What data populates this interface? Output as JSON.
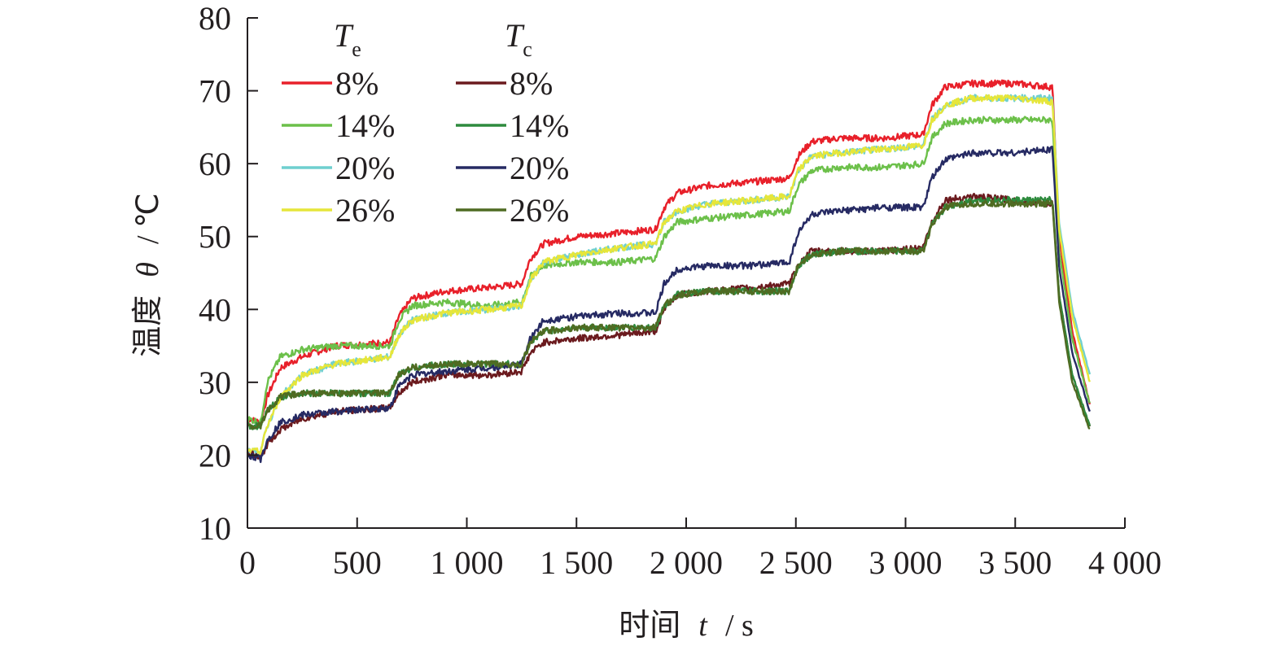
{
  "chart_data": {
    "type": "line",
    "xlabel": {
      "prefix": "时间",
      "var": "t",
      "unit": "/ s"
    },
    "ylabel": {
      "prefix": "温度",
      "var": "θ",
      "unit": "/ ℃"
    },
    "xlim": [
      0,
      4000
    ],
    "ylim": [
      10,
      80
    ],
    "xticks": [
      0,
      500,
      1000,
      1500,
      2000,
      2500,
      3000,
      3500,
      4000
    ],
    "xtick_labels": [
      "0",
      "500",
      "1 000",
      "1 500",
      "2 000",
      "2 500",
      "3 000",
      "3 500",
      "4 000"
    ],
    "yticks": [
      10,
      20,
      30,
      40,
      50,
      60,
      70,
      80
    ],
    "ytick_labels": [
      "10",
      "20",
      "30",
      "40",
      "50",
      "60",
      "70",
      "80"
    ],
    "grid": false,
    "legend_position": "top-left",
    "legend_groups": [
      {
        "symbol": "T",
        "subscript": "e"
      },
      {
        "symbol": "T",
        "subscript": "c"
      }
    ],
    "series": [
      {
        "group": "Te",
        "name": "8%",
        "color": "#e8202a",
        "x": [
          0,
          60,
          90,
          150,
          250,
          400,
          650,
          690,
          750,
          900,
          1100,
          1250,
          1290,
          1350,
          1500,
          1700,
          1860,
          1900,
          1960,
          2100,
          2300,
          2470,
          2510,
          2570,
          2700,
          2900,
          3080,
          3120,
          3180,
          3300,
          3500,
          3670,
          3700,
          3760,
          3840
        ],
        "y": [
          25,
          24.5,
          28,
          32,
          33.5,
          35,
          35.5,
          39,
          41.5,
          42.5,
          43,
          43.5,
          47,
          49,
          50,
          50.5,
          51,
          54,
          56,
          57,
          57.5,
          58,
          61,
          63,
          63.5,
          63.5,
          64,
          68,
          70.5,
          71,
          71,
          70.5,
          50,
          37,
          27
        ]
      },
      {
        "group": "Te",
        "name": "14%",
        "color": "#6cc04a",
        "x": [
          0,
          60,
          90,
          150,
          250,
          400,
          650,
          690,
          750,
          900,
          1100,
          1250,
          1290,
          1350,
          1500,
          1700,
          1860,
          1900,
          1960,
          2100,
          2300,
          2470,
          2510,
          2570,
          2700,
          2900,
          3080,
          3120,
          3180,
          3300,
          3500,
          3670,
          3700,
          3760,
          3840
        ],
        "y": [
          25,
          24.5,
          30,
          33.5,
          34.5,
          35,
          35,
          38.5,
          40.5,
          41,
          40.5,
          41,
          44.5,
          46,
          46.5,
          46.5,
          47,
          50,
          52,
          52.5,
          53,
          53.5,
          57,
          59,
          59.5,
          59.5,
          60,
          63.5,
          65.5,
          66,
          66,
          66,
          48,
          36,
          27
        ]
      },
      {
        "group": "Te",
        "name": "20%",
        "color": "#6fcfcf",
        "x": [
          0,
          60,
          90,
          150,
          250,
          400,
          650,
          690,
          750,
          900,
          1100,
          1250,
          1290,
          1350,
          1500,
          1700,
          1860,
          1900,
          1960,
          2100,
          2300,
          2470,
          2510,
          2570,
          2700,
          2900,
          3080,
          3120,
          3180,
          3300,
          3500,
          3670,
          3700,
          3760,
          3840
        ],
        "y": [
          20.5,
          20.5,
          24,
          28,
          31,
          32.5,
          33.5,
          36.5,
          38.5,
          39.5,
          40,
          40.5,
          44,
          46.5,
          47.5,
          48.5,
          49,
          52,
          53.5,
          54.5,
          55,
          55.5,
          59,
          61,
          61.5,
          62,
          62.5,
          66,
          68,
          69,
          69,
          69,
          52,
          40,
          31
        ]
      },
      {
        "group": "Te",
        "name": "26%",
        "color": "#e6e63a",
        "x": [
          0,
          60,
          90,
          150,
          250,
          400,
          650,
          690,
          750,
          900,
          1100,
          1250,
          1290,
          1350,
          1500,
          1700,
          1860,
          1900,
          1960,
          2100,
          2300,
          2470,
          2510,
          2570,
          2700,
          2900,
          3080,
          3120,
          3180,
          3300,
          3500,
          3670,
          3700,
          3760,
          3840
        ],
        "y": [
          20.5,
          20.5,
          24,
          28,
          31,
          32.5,
          33.5,
          36.5,
          38.5,
          39.5,
          40,
          40.5,
          44,
          46.5,
          47.5,
          48.5,
          49,
          52,
          53.5,
          54.5,
          55,
          55.5,
          59,
          61,
          61.5,
          62,
          62.5,
          66,
          68,
          69,
          69,
          68.5,
          51,
          39,
          30
        ]
      },
      {
        "group": "Tc",
        "name": "8%",
        "color": "#6b1a1e",
        "x": [
          0,
          60,
          90,
          150,
          250,
          400,
          650,
          690,
          750,
          900,
          1100,
          1250,
          1290,
          1350,
          1500,
          1700,
          1860,
          1900,
          1960,
          2100,
          2300,
          2470,
          2510,
          2570,
          2700,
          2900,
          3080,
          3120,
          3180,
          3300,
          3500,
          3670,
          3700,
          3760,
          3840
        ],
        "y": [
          20.5,
          19.5,
          21.5,
          23.5,
          25,
          26,
          26.5,
          28.5,
          30,
          31,
          31,
          31.5,
          34,
          35.5,
          36,
          36.5,
          37,
          40,
          42,
          42.5,
          43,
          43.5,
          46,
          48,
          48,
          48,
          48.5,
          52,
          55,
          55.5,
          55,
          54.5,
          42,
          31,
          24
        ]
      },
      {
        "group": "Tc",
        "name": "14%",
        "color": "#2e8b3e",
        "x": [
          0,
          60,
          90,
          150,
          250,
          400,
          650,
          690,
          750,
          900,
          1100,
          1250,
          1290,
          1350,
          1500,
          1700,
          1860,
          1900,
          1960,
          2100,
          2300,
          2470,
          2510,
          2570,
          2700,
          2900,
          3080,
          3120,
          3180,
          3300,
          3500,
          3670,
          3700,
          3760,
          3840
        ],
        "y": [
          24,
          24,
          26,
          28,
          28.5,
          28.5,
          28.5,
          31,
          32,
          32.5,
          32.5,
          32.5,
          35.5,
          37,
          37.5,
          37.5,
          37.5,
          40.5,
          42,
          42.5,
          42.5,
          42.5,
          46,
          47.5,
          48,
          48,
          48,
          51.5,
          54,
          55,
          55,
          55,
          42,
          31,
          24
        ]
      },
      {
        "group": "Tc",
        "name": "20%",
        "color": "#262a63",
        "x": [
          0,
          60,
          90,
          150,
          250,
          400,
          650,
          690,
          750,
          900,
          1100,
          1250,
          1290,
          1350,
          1500,
          1700,
          1860,
          1900,
          1960,
          2100,
          2300,
          2470,
          2510,
          2570,
          2700,
          2900,
          3080,
          3120,
          3180,
          3300,
          3500,
          3670,
          3700,
          3760,
          3840
        ],
        "y": [
          20,
          19.5,
          22,
          24.5,
          25.5,
          26,
          26.5,
          29.5,
          31,
          31.5,
          32,
          32.5,
          36,
          38.5,
          39,
          39.5,
          39.5,
          43.5,
          45.5,
          46,
          46,
          46.5,
          50.5,
          53,
          53.5,
          54,
          54,
          58,
          60.5,
          61.5,
          61.5,
          62,
          46,
          34,
          26
        ]
      },
      {
        "group": "Tc",
        "name": "26%",
        "color": "#4f6b22",
        "x": [
          0,
          60,
          90,
          150,
          250,
          400,
          650,
          690,
          750,
          900,
          1100,
          1250,
          1290,
          1350,
          1500,
          1700,
          1860,
          1900,
          1960,
          2100,
          2300,
          2470,
          2510,
          2570,
          2700,
          2900,
          3080,
          3120,
          3180,
          3300,
          3500,
          3670,
          3700,
          3760,
          3840
        ],
        "y": [
          24,
          24,
          26,
          28,
          28.5,
          28.5,
          28.5,
          31,
          32,
          32.5,
          32.5,
          32.5,
          35.5,
          37,
          37.5,
          37.5,
          37.5,
          40.5,
          42,
          42.5,
          42.5,
          42.5,
          46,
          47.5,
          48,
          48,
          48,
          51.5,
          54,
          54.5,
          54.5,
          54.5,
          41,
          30,
          23.5
        ]
      }
    ]
  }
}
